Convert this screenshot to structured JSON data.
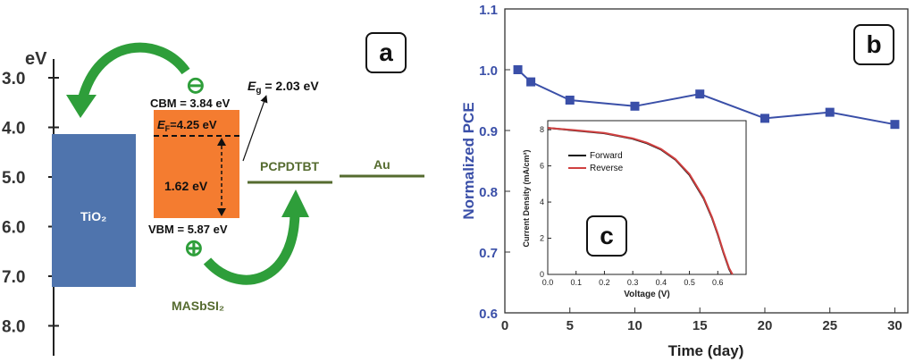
{
  "panel_a": {
    "label": "a",
    "axis_unit": "eV",
    "ticks": [
      "3.0",
      "4.0",
      "5.0",
      "6.0",
      "7.0",
      "8.0"
    ],
    "tio2_label": "TiO₂",
    "material_label": "MASbSI₂",
    "cbm": "CBM = 3.84 eV",
    "ef_sym": "E",
    "ef_sub": "F",
    "ef_val": "=4.25 eV",
    "gap_inner": "1.62 eV",
    "vbm": "VBM = 5.87 eV",
    "eg_sym": "E",
    "eg_sub": "g",
    "eg_val": " = 2.03 eV",
    "htm_label": "PCPDTBT",
    "electrode_label": "Au",
    "electron_symbol": "⊖",
    "hole_symbol": "⊕",
    "colors": {
      "tio2": "#4f74ad",
      "absorber": "#f47c30",
      "arrow": "#2e9e3a",
      "levels": "#556b2f"
    }
  },
  "chart_data": [
    {
      "type": "line",
      "label": "b",
      "x": [
        1,
        2,
        5,
        10,
        15,
        20,
        25,
        30
      ],
      "y": [
        1.0,
        0.98,
        0.95,
        0.94,
        0.96,
        0.92,
        0.93,
        0.91
      ],
      "xlabel": "Time (day)",
      "ylabel": "Normalized PCE",
      "xticks": [
        "0",
        "5",
        "10",
        "15",
        "20",
        "25",
        "30"
      ],
      "yticks": [
        "0.6",
        "0.7",
        "0.8",
        "0.9",
        "1.0",
        "1.1"
      ],
      "xlim": [
        0,
        31
      ],
      "ylim": [
        0.6,
        1.1
      ],
      "color": "#3a4fa8"
    },
    {
      "type": "line",
      "label": "c",
      "xlabel": "Voltage (V)",
      "ylabel": "Current Density (mA/cm²)",
      "xticks": [
        "0.0",
        "0.1",
        "0.2",
        "0.3",
        "0.4",
        "0.5",
        "0.6"
      ],
      "yticks": [
        "0",
        "2",
        "4",
        "6",
        "8"
      ],
      "xlim": [
        0,
        0.7
      ],
      "ylim": [
        0,
        8.5
      ],
      "series": [
        {
          "name": "Forward",
          "color": "#111111",
          "x": [
            0,
            0.1,
            0.2,
            0.3,
            0.35,
            0.4,
            0.45,
            0.5,
            0.55,
            0.58,
            0.6,
            0.62,
            0.64,
            0.65
          ],
          "y": [
            8.1,
            7.95,
            7.8,
            7.5,
            7.25,
            6.9,
            6.35,
            5.5,
            4.2,
            3.1,
            2.2,
            1.2,
            0.3,
            0
          ]
        },
        {
          "name": "Reverse",
          "color": "#d04040",
          "x": [
            0,
            0.1,
            0.2,
            0.3,
            0.35,
            0.4,
            0.45,
            0.5,
            0.55,
            0.58,
            0.6,
            0.62,
            0.64,
            0.652
          ],
          "y": [
            8.1,
            7.97,
            7.82,
            7.52,
            7.28,
            6.93,
            6.38,
            5.55,
            4.25,
            3.15,
            2.25,
            1.25,
            0.35,
            0
          ]
        }
      ]
    }
  ]
}
